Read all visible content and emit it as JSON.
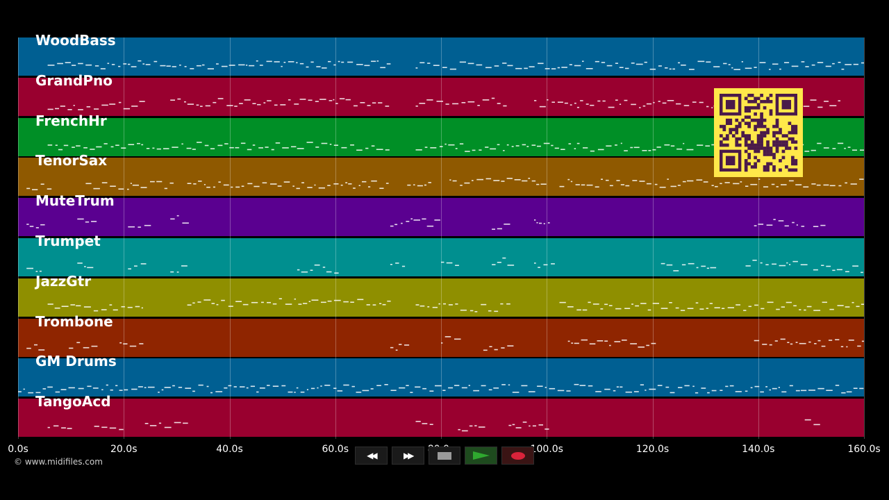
{
  "tracks": [
    {
      "name": "WoodBass",
      "color": "#005f92"
    },
    {
      "name": "GrandPno",
      "color": "#99002f"
    },
    {
      "name": "FrenchHr",
      "color": "#008f26"
    },
    {
      "name": "TenorSax",
      "color": "#8f5900"
    },
    {
      "name": "MuteTrum",
      "color": "#5a0090"
    },
    {
      "name": "Trumpet",
      "color": "#008f8f"
    },
    {
      "name": "JazzGtr",
      "color": "#8f8f00"
    },
    {
      "name": "Trombone",
      "color": "#8f2500"
    },
    {
      "name": "GM Drums",
      "color": "#005f92"
    },
    {
      "name": "TangoAcd",
      "color": "#99002f"
    }
  ],
  "time_axis": {
    "ticks": [
      "0.0s",
      "20.0s",
      "40.0s",
      "60.0s",
      "80.0s",
      "100.0s",
      "120.0s",
      "140.0s",
      "160.0s"
    ],
    "max_seconds": 160
  },
  "copyright": "© www.midifiles.com",
  "transport": {
    "rewind": "◀◀",
    "fast_forward": "▶▶"
  },
  "colors": {
    "qr_background": "#ffe84a",
    "qr_modules": "#4a1a4a",
    "play": "#2fa82f",
    "record": "#d8233a",
    "stop": "#9a9a9a"
  }
}
